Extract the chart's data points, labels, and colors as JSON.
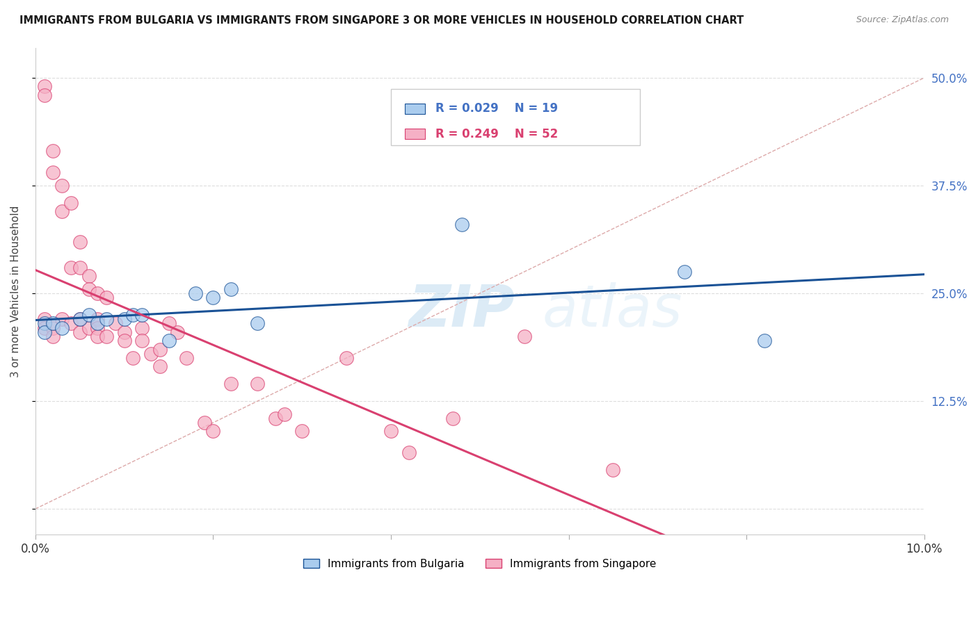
{
  "title": "IMMIGRANTS FROM BULGARIA VS IMMIGRANTS FROM SINGAPORE 3 OR MORE VEHICLES IN HOUSEHOLD CORRELATION CHART",
  "source": "Source: ZipAtlas.com",
  "ylabel": "3 or more Vehicles in Household",
  "xlim": [
    0.0,
    0.1
  ],
  "ylim": [
    -0.03,
    0.535
  ],
  "yticks": [
    0.0,
    0.125,
    0.25,
    0.375,
    0.5
  ],
  "color_bulgaria": "#aaccee",
  "color_singapore": "#f5b0c5",
  "color_bulgaria_line": "#1a5296",
  "color_singapore_line": "#d94070",
  "color_diagonal": "#cccccc",
  "bg_color": "#ffffff",
  "grid_color": "#dddddd",
  "bulgaria_scatter_x": [
    0.001,
    0.001,
    0.002,
    0.003,
    0.005,
    0.006,
    0.007,
    0.008,
    0.01,
    0.011,
    0.012,
    0.015,
    0.018,
    0.02,
    0.022,
    0.025,
    0.048,
    0.073,
    0.082
  ],
  "bulgaria_scatter_y": [
    0.215,
    0.205,
    0.215,
    0.21,
    0.22,
    0.225,
    0.215,
    0.22,
    0.22,
    0.225,
    0.225,
    0.195,
    0.25,
    0.245,
    0.255,
    0.215,
    0.33,
    0.275,
    0.195
  ],
  "singapore_scatter_x": [
    0.001,
    0.001,
    0.001,
    0.001,
    0.002,
    0.002,
    0.002,
    0.002,
    0.003,
    0.003,
    0.003,
    0.004,
    0.004,
    0.004,
    0.005,
    0.005,
    0.005,
    0.005,
    0.006,
    0.006,
    0.006,
    0.007,
    0.007,
    0.007,
    0.007,
    0.008,
    0.008,
    0.009,
    0.01,
    0.01,
    0.011,
    0.012,
    0.012,
    0.013,
    0.014,
    0.014,
    0.015,
    0.016,
    0.017,
    0.019,
    0.02,
    0.022,
    0.025,
    0.027,
    0.028,
    0.03,
    0.035,
    0.04,
    0.042,
    0.047,
    0.055,
    0.065
  ],
  "singapore_scatter_y": [
    0.49,
    0.48,
    0.22,
    0.21,
    0.415,
    0.39,
    0.21,
    0.2,
    0.375,
    0.345,
    0.22,
    0.355,
    0.28,
    0.215,
    0.31,
    0.28,
    0.22,
    0.205,
    0.27,
    0.255,
    0.21,
    0.25,
    0.22,
    0.21,
    0.2,
    0.245,
    0.2,
    0.215,
    0.205,
    0.195,
    0.175,
    0.21,
    0.195,
    0.18,
    0.185,
    0.165,
    0.215,
    0.205,
    0.175,
    0.1,
    0.09,
    0.145,
    0.145,
    0.105,
    0.11,
    0.09,
    0.175,
    0.09,
    0.065,
    0.105,
    0.2,
    0.045
  ],
  "watermark_zip": "ZIP",
  "watermark_atlas": "atlas"
}
